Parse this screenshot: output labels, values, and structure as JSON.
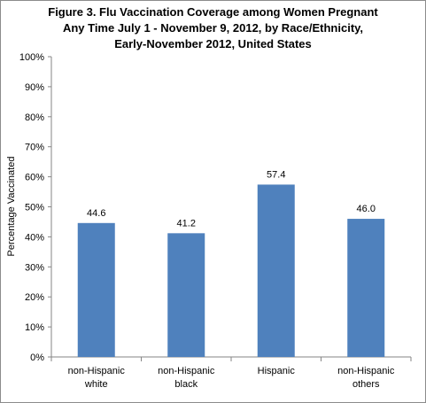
{
  "chart_data": {
    "type": "bar",
    "title": [
      "Figure 3. Flu Vaccination Coverage among Women Pregnant",
      "Any Time July 1 - November 9, 2012,  by Race/Ethnicity,",
      "Early-November 2012, United States"
    ],
    "xlabel": "",
    "ylabel": "Percentage Vaccinated",
    "categories": [
      [
        "non-Hispanic",
        "white"
      ],
      [
        "non-Hispanic",
        "black"
      ],
      [
        "Hispanic"
      ],
      [
        "non-Hispanic",
        "others"
      ]
    ],
    "values": [
      44.6,
      41.2,
      57.4,
      46.0
    ],
    "value_labels": [
      "44.6",
      "41.2",
      "57.4",
      "46.0"
    ],
    "ylim": [
      0,
      100
    ],
    "yticks": [
      "0%",
      "10%",
      "20%",
      "30%",
      "40%",
      "50%",
      "60%",
      "70%",
      "80%",
      "90%",
      "100%"
    ],
    "grid": false,
    "legend": "none",
    "bar_color": "#4f81bd"
  }
}
